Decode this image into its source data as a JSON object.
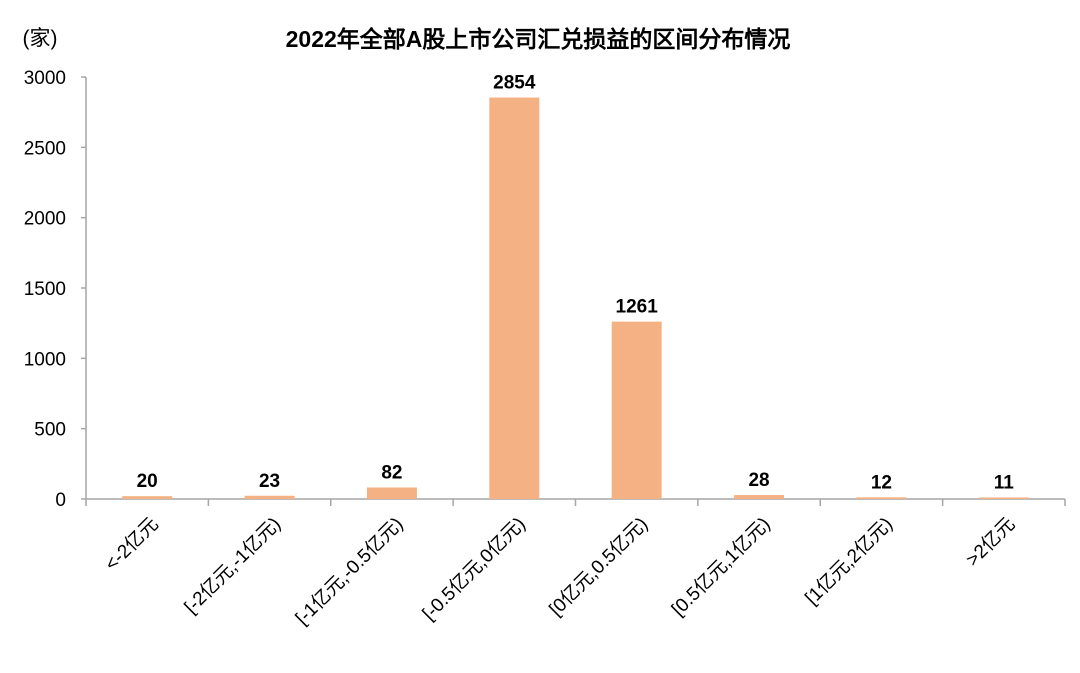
{
  "chart_data": {
    "type": "bar",
    "title": "2022年全部A股上市公司汇兑损益的区间分布情况",
    "ylabel": "(家)",
    "xlabel": "",
    "ylim": [
      0,
      3000
    ],
    "yticks": [
      0,
      500,
      1000,
      1500,
      2000,
      2500,
      3000
    ],
    "grid": false,
    "categories": [
      "<-2亿元",
      "[-2亿元,-1亿元)",
      "[-1亿元,-0.5亿元)",
      "[-0.5亿元,0亿元)",
      "[0亿元,0.5亿元)",
      "[0.5亿元,1亿元)",
      "[1亿元,2亿元)",
      ">2亿元"
    ],
    "values": [
      20,
      23,
      82,
      2854,
      1261,
      28,
      12,
      11
    ],
    "data_labels": [
      "20",
      "23",
      "82",
      "2854",
      "1261",
      "28",
      "12",
      "11"
    ],
    "bar_color": "#F4B183",
    "axis_color": "#A6A6A6"
  }
}
